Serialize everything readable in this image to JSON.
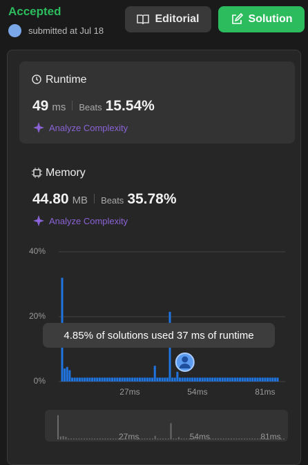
{
  "header": {
    "status": "Accepted",
    "submitted": "submitted at Jul 18",
    "buttons": [
      "Editorial",
      "Solution"
    ]
  },
  "runtime": {
    "title": "Runtime",
    "value": "49",
    "unit": "ms",
    "beats_label": "Beats",
    "beats": "15.54%",
    "analyze": "Analyze Complexity"
  },
  "memory": {
    "title": "Memory",
    "value": "44.80",
    "unit": "MB",
    "beats_label": "Beats",
    "beats": "35.78%",
    "analyze": "Analyze Complexity"
  },
  "chart_data": {
    "type": "bar",
    "color": "#1f74e0",
    "x": [
      0,
      1,
      2,
      3,
      4,
      5,
      6,
      7,
      8,
      9,
      10,
      11,
      12,
      13,
      14,
      15,
      16,
      17,
      18,
      19,
      20,
      21,
      22,
      23,
      24,
      25,
      26,
      27,
      28,
      29,
      30,
      31,
      32,
      33,
      34,
      35,
      36,
      37,
      38,
      39,
      40,
      41,
      42,
      43,
      44,
      45,
      46,
      47,
      48,
      49,
      50,
      51,
      52,
      53,
      54,
      55,
      56,
      57,
      58,
      59,
      60,
      61,
      62,
      63,
      64,
      65,
      66,
      67,
      68,
      69,
      70,
      71,
      72,
      73,
      74,
      75,
      76,
      77,
      78,
      79,
      80,
      81,
      82,
      83,
      84,
      85,
      86
    ],
    "values": [
      32,
      4,
      4.5,
      3.5,
      1.2,
      1.2,
      1.2,
      1.2,
      1.2,
      1.2,
      1.2,
      1.2,
      1.2,
      1.2,
      1.2,
      1.2,
      1.2,
      1.2,
      1.2,
      1.2,
      1.2,
      1.2,
      1.2,
      1.2,
      1.2,
      1.2,
      1.2,
      1.2,
      1.2,
      1.2,
      1.2,
      1.2,
      1.2,
      1.2,
      1.2,
      1.2,
      1.2,
      4.85,
      1.2,
      1.2,
      1.2,
      1.2,
      1.2,
      21.5,
      1.2,
      1.2,
      3,
      1.2,
      1.2,
      1.2,
      1.2,
      1.2,
      1.2,
      1.2,
      1.2,
      1.2,
      1.2,
      1.2,
      1.2,
      1.2,
      1.2,
      1.2,
      1.2,
      1.2,
      1.2,
      1.2,
      1.2,
      1.2,
      1.2,
      1.2,
      1.2,
      1.2,
      1.2,
      1.2,
      1.2,
      1.2,
      1.2,
      1.2,
      1.2,
      1.2,
      1.2,
      1.2,
      1.2,
      1.2,
      1.2,
      1.2,
      1.2
    ],
    "xlim": [
      0,
      86
    ],
    "ylim": [
      0,
      40
    ],
    "xticks": [
      {
        "value": 27,
        "label": "27ms"
      },
      {
        "value": 54,
        "label": "54ms"
      },
      {
        "value": 81,
        "label": "81ms"
      }
    ],
    "yticks": [
      {
        "value": 0,
        "label": "0%"
      },
      {
        "value": 20,
        "label": "20%"
      },
      {
        "value": 40,
        "label": "40%"
      }
    ],
    "grid": true,
    "user_runtime": 49,
    "tooltip": "4.85% of solutions used 37 ms of runtime"
  }
}
